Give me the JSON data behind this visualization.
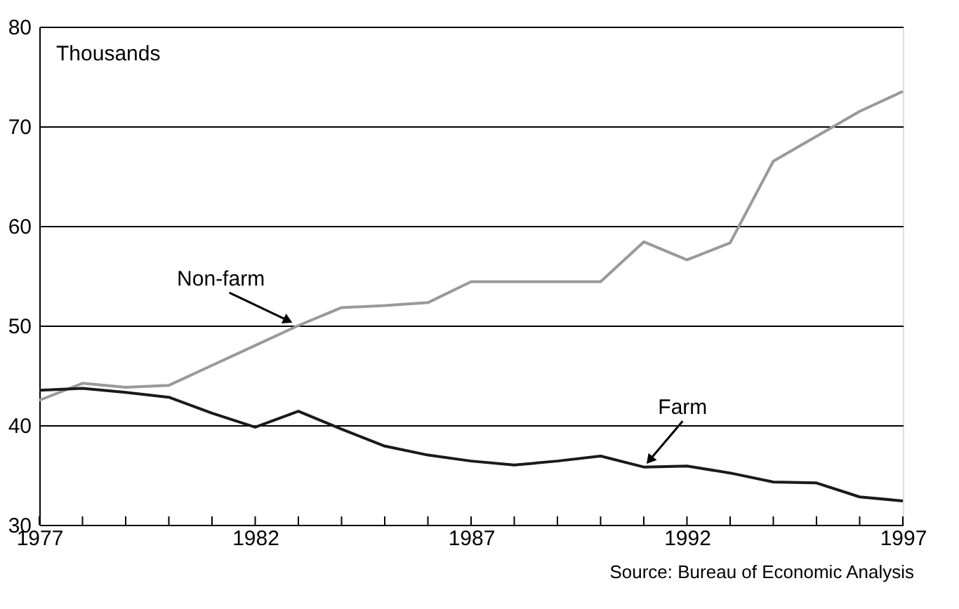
{
  "chart_data": {
    "type": "line",
    "x": [
      1977,
      1978,
      1979,
      1980,
      1981,
      1982,
      1983,
      1984,
      1985,
      1986,
      1987,
      1988,
      1989,
      1990,
      1991,
      1992,
      1993,
      1994,
      1995,
      1996,
      1997
    ],
    "series": [
      {
        "name": "Non-farm",
        "color": "#999999",
        "values": [
          42.5,
          44.2,
          43.8,
          44.0,
          46.0,
          48.0,
          50.0,
          51.8,
          52.0,
          52.3,
          54.4,
          54.4,
          54.4,
          54.4,
          58.4,
          56.6,
          58.3,
          66.5,
          69.0,
          71.5,
          73.5
        ]
      },
      {
        "name": "Farm",
        "color": "#1a1a1a",
        "values": [
          43.5,
          43.7,
          43.3,
          42.8,
          41.2,
          39.8,
          41.4,
          39.6,
          37.9,
          37.0,
          36.4,
          36.0,
          36.4,
          36.9,
          35.8,
          35.9,
          35.2,
          34.3,
          34.2,
          32.8,
          32.4
        ]
      }
    ],
    "ylabel": "Thousands",
    "xlim": [
      1977,
      1997
    ],
    "xticks": [
      1977,
      {
        "value": 1978,
        "label": null
      },
      {
        "value": 1979,
        "label": null
      },
      {
        "value": 1980,
        "label": null
      },
      {
        "value": 1981,
        "label": null
      },
      1982,
      {
        "value": 1983,
        "label": null
      },
      {
        "value": 1984,
        "label": null
      },
      {
        "value": 1985,
        "label": null
      },
      {
        "value": 1986,
        "label": null
      },
      1987,
      {
        "value": 1988,
        "label": null
      },
      {
        "value": 1989,
        "label": null
      },
      {
        "value": 1990,
        "label": null
      },
      {
        "value": 1991,
        "label": null
      },
      1992,
      {
        "value": 1993,
        "label": null
      },
      {
        "value": 1994,
        "label": null
      },
      {
        "value": 1995,
        "label": null
      },
      {
        "value": 1996,
        "label": null
      },
      1997
    ],
    "ylim": [
      30,
      80
    ],
    "yticks": [
      30,
      40,
      50,
      60,
      70,
      80
    ],
    "grid": "y",
    "legend": false,
    "marker": "none",
    "line_style": "solid",
    "annotations": [
      "Source: Bureau of Economic Analysis"
    ]
  }
}
